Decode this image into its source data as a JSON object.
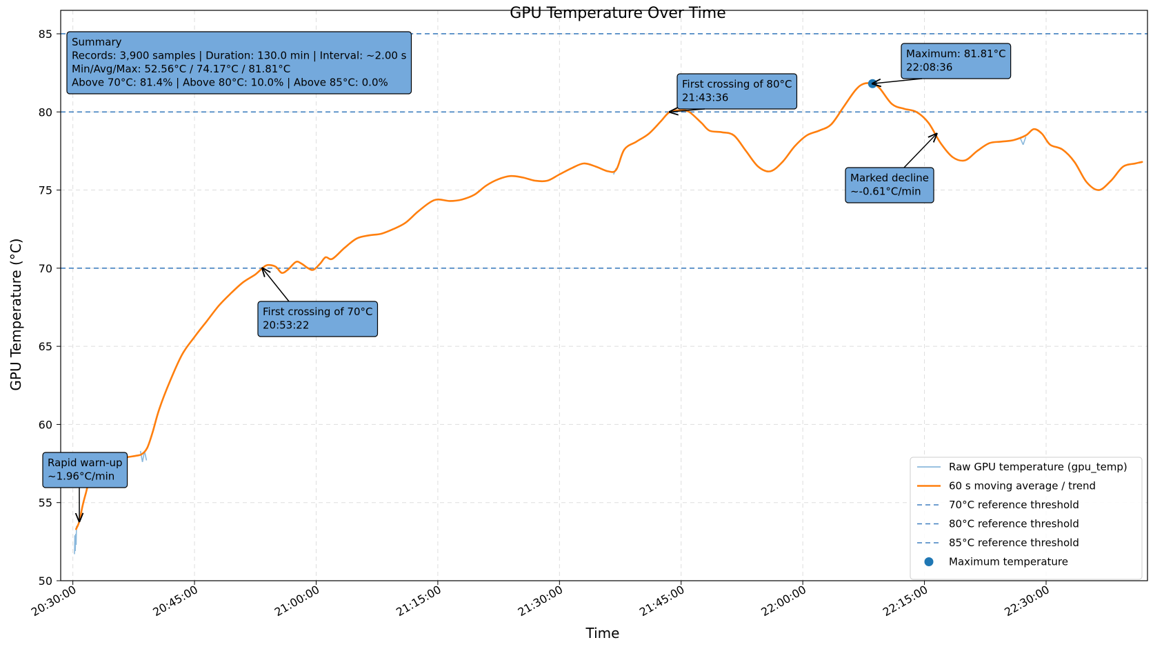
{
  "chart_data": {
    "type": "line",
    "title": "GPU Temperature Over Time",
    "xlabel": "Time",
    "ylabel": "GPU Temperature (°C)",
    "ylim": [
      50,
      86.5
    ],
    "xlim": [
      "20:28:30",
      "22:42:30"
    ],
    "x_ticks": [
      "20:30:00",
      "20:45:00",
      "21:00:00",
      "21:15:00",
      "21:30:00",
      "21:45:00",
      "22:00:00",
      "22:15:00",
      "22:30:00"
    ],
    "y_ticks": [
      50,
      55,
      60,
      65,
      70,
      75,
      80,
      85
    ],
    "grid": true,
    "legend_position": "bottom-right",
    "colors": {
      "raw": "#8ab8dc",
      "trend": "#ff7f0e",
      "threshold": "#3f7fbf",
      "max_marker": "#1f77b4",
      "annotation_fill": "#74a9dc"
    },
    "series": [
      {
        "name": "60 s moving average / trend",
        "points": [
          [
            "20:30:24",
            53.3
          ],
          [
            "20:30:48",
            53.8
          ],
          [
            "20:31:12",
            54.8
          ],
          [
            "20:31:36",
            55.6
          ],
          [
            "20:32:00",
            56.3
          ],
          [
            "20:32:48",
            56.9
          ],
          [
            "20:33:36",
            57.3
          ],
          [
            "20:35:00",
            57.7
          ],
          [
            "20:36:40",
            57.9
          ],
          [
            "20:37:50",
            58.0
          ],
          [
            "20:38:30",
            58.1
          ],
          [
            "20:39:10",
            58.5
          ],
          [
            "20:39:50",
            59.5
          ],
          [
            "20:40:40",
            61.0
          ],
          [
            "20:42:00",
            62.8
          ],
          [
            "20:43:30",
            64.5
          ],
          [
            "20:45:00",
            65.6
          ],
          [
            "20:46:30",
            66.6
          ],
          [
            "20:48:00",
            67.6
          ],
          [
            "20:49:30",
            68.4
          ],
          [
            "20:51:00",
            69.1
          ],
          [
            "20:52:30",
            69.6
          ],
          [
            "20:53:22",
            70.0
          ],
          [
            "20:54:00",
            70.2
          ],
          [
            "20:55:00",
            70.1
          ],
          [
            "20:55:45",
            69.7
          ],
          [
            "20:56:30",
            69.9
          ],
          [
            "20:57:30",
            70.4
          ],
          [
            "20:58:10",
            70.3
          ],
          [
            "20:59:00",
            70.0
          ],
          [
            "20:59:40",
            69.9
          ],
          [
            "21:00:30",
            70.3
          ],
          [
            "21:01:10",
            70.7
          ],
          [
            "21:02:00",
            70.6
          ],
          [
            "21:03:30",
            71.3
          ],
          [
            "21:05:00",
            71.9
          ],
          [
            "21:06:30",
            72.1
          ],
          [
            "21:08:00",
            72.2
          ],
          [
            "21:09:30",
            72.5
          ],
          [
            "21:11:00",
            72.9
          ],
          [
            "21:12:30",
            73.6
          ],
          [
            "21:14:00",
            74.2
          ],
          [
            "21:15:00",
            74.4
          ],
          [
            "21:16:30",
            74.3
          ],
          [
            "21:18:00",
            74.4
          ],
          [
            "21:19:30",
            74.7
          ],
          [
            "21:21:00",
            75.3
          ],
          [
            "21:22:30",
            75.7
          ],
          [
            "21:24:00",
            75.9
          ],
          [
            "21:25:30",
            75.8
          ],
          [
            "21:27:00",
            75.6
          ],
          [
            "21:28:30",
            75.6
          ],
          [
            "21:30:00",
            76.0
          ],
          [
            "21:31:30",
            76.4
          ],
          [
            "21:33:00",
            76.7
          ],
          [
            "21:34:30",
            76.5
          ],
          [
            "21:36:00",
            76.2
          ],
          [
            "21:37:00",
            76.3
          ],
          [
            "21:38:00",
            77.6
          ],
          [
            "21:39:30",
            78.1
          ],
          [
            "21:41:00",
            78.6
          ],
          [
            "21:42:30",
            79.4
          ],
          [
            "21:43:36",
            80.0
          ],
          [
            "21:45:00",
            80.1
          ],
          [
            "21:46:00",
            80.0
          ],
          [
            "21:47:30",
            79.3
          ],
          [
            "21:48:30",
            78.8
          ],
          [
            "21:50:00",
            78.7
          ],
          [
            "21:51:30",
            78.5
          ],
          [
            "21:53:00",
            77.5
          ],
          [
            "21:54:30",
            76.5
          ],
          [
            "21:56:00",
            76.2
          ],
          [
            "21:57:30",
            76.8
          ],
          [
            "21:59:00",
            77.8
          ],
          [
            "22:00:30",
            78.5
          ],
          [
            "22:02:00",
            78.8
          ],
          [
            "22:03:30",
            79.2
          ],
          [
            "22:05:00",
            80.3
          ],
          [
            "22:06:30",
            81.4
          ],
          [
            "22:07:30",
            81.8
          ],
          [
            "22:08:36",
            81.8
          ],
          [
            "22:09:30",
            81.5
          ],
          [
            "22:11:00",
            80.5
          ],
          [
            "22:12:30",
            80.2
          ],
          [
            "22:14:00",
            80.0
          ],
          [
            "22:15:30",
            79.3
          ],
          [
            "22:17:00",
            78.0
          ],
          [
            "22:18:30",
            77.1
          ],
          [
            "22:20:00",
            76.9
          ],
          [
            "22:21:30",
            77.5
          ],
          [
            "22:23:00",
            78.0
          ],
          [
            "22:24:30",
            78.1
          ],
          [
            "22:26:00",
            78.2
          ],
          [
            "22:27:30",
            78.5
          ],
          [
            "22:28:30",
            78.9
          ],
          [
            "22:29:30",
            78.6
          ],
          [
            "22:30:30",
            77.9
          ],
          [
            "22:32:00",
            77.6
          ],
          [
            "22:33:30",
            76.8
          ],
          [
            "22:35:00",
            75.5
          ],
          [
            "22:36:30",
            75.0
          ],
          [
            "22:38:00",
            75.6
          ],
          [
            "22:39:30",
            76.5
          ],
          [
            "22:41:00",
            76.7
          ],
          [
            "22:41:50",
            76.8
          ]
        ]
      },
      {
        "name": "Raw GPU temperature (gpu_temp)",
        "points": [
          [
            "20:30:12",
            51.7
          ],
          [
            "20:30:15",
            52.9
          ],
          [
            "20:30:18",
            51.9
          ],
          [
            "20:30:21",
            53.0
          ],
          [
            "20:30:24",
            52.3
          ],
          [
            "20:30:27",
            53.5
          ],
          [
            "20:38:20",
            58.3
          ],
          [
            "20:38:35",
            57.6
          ],
          [
            "20:38:50",
            58.3
          ],
          [
            "20:39:05",
            57.7
          ],
          [
            "20:54:00",
            70.3
          ],
          [
            "21:26:30",
            75.7
          ],
          [
            "21:36:40",
            76.0
          ],
          [
            "21:37:00",
            76.4
          ],
          [
            "22:26:50",
            78.3
          ],
          [
            "22:27:10",
            77.9
          ],
          [
            "22:27:30",
            78.4
          ]
        ]
      }
    ],
    "thresholds": [
      {
        "name": "70°C reference threshold",
        "value": 70
      },
      {
        "name": "80°C reference threshold",
        "value": 80
      },
      {
        "name": "85°C reference threshold",
        "value": 85
      }
    ],
    "maximum": {
      "name": "Maximum temperature",
      "time": "22:08:36",
      "value": 81.81
    },
    "legend": [
      {
        "label": "Raw GPU temperature (gpu_temp)",
        "kind": "line",
        "color": "#8ab8dc"
      },
      {
        "label": "60 s moving average / trend",
        "kind": "line",
        "color": "#ff7f0e"
      },
      {
        "label": "70°C reference threshold",
        "kind": "dash",
        "color": "#3f7fbf"
      },
      {
        "label": "80°C reference threshold",
        "kind": "dash",
        "color": "#3f7fbf"
      },
      {
        "label": "85°C reference threshold",
        "kind": "dash",
        "color": "#3f7fbf"
      },
      {
        "label": "Maximum temperature",
        "kind": "dot",
        "color": "#1f77b4"
      }
    ],
    "summary": {
      "lines": [
        "Summary",
        "Records: 3,900 samples | Duration: 130.0 min | Interval: ~2.00 s",
        "Min/Avg/Max: 52.56°C / 74.17°C / 81.81°C",
        "Above 70°C: 81.4% | Above 80°C: 10.0% | Above 85°C: 0.0%"
      ]
    },
    "annotations": [
      {
        "id": "rapid-warmup",
        "lines": [
          "Rapid warn-up",
          "~1.96°C/min"
        ],
        "target": [
          "20:30:48",
          53.8
        ]
      },
      {
        "id": "first-70",
        "lines": [
          "First crossing of 70°C",
          "20:53:22"
        ],
        "target": [
          "20:53:22",
          70.0
        ]
      },
      {
        "id": "first-80",
        "lines": [
          "First crossing of 80°C",
          "21:43:36"
        ],
        "target": [
          "21:43:36",
          80.0
        ]
      },
      {
        "id": "maximum",
        "lines": [
          "Maximum: 81.81°C",
          "22:08:36"
        ],
        "target": [
          "22:08:36",
          81.81
        ]
      },
      {
        "id": "decline",
        "lines": [
          "Marked decline",
          "~-0.61°C/min"
        ],
        "target": [
          "22:16:30",
          78.6
        ]
      }
    ]
  }
}
